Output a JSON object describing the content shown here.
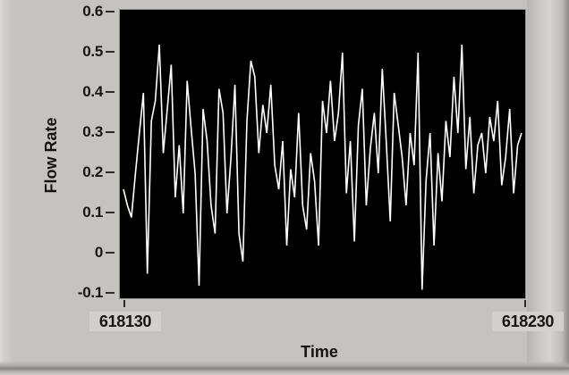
{
  "window": {
    "background": "#c5c3c0",
    "plot_background": "#000000",
    "trace_color": "#ffffff",
    "text_color": "#161616"
  },
  "chart_data": {
    "type": "line",
    "title": "",
    "xlabel": "Time",
    "ylabel": "Flow Rate",
    "xlim": [
      618130,
      618230
    ],
    "ylim": [
      -0.1,
      0.6
    ],
    "x_ticks": [
      "618130",
      "618230"
    ],
    "y_ticks": [
      "0.6",
      "0.5",
      "0.4",
      "0.3",
      "0.2",
      "0.1",
      "0",
      "-0.1"
    ],
    "y_tick_values": [
      0.6,
      0.5,
      0.4,
      0.3,
      0.2,
      0.1,
      0,
      -0.1
    ],
    "grid": false,
    "legend": "none",
    "plot_bg": "#000000",
    "line_color": "#ffffff",
    "x_start": 618130,
    "x_step": 1,
    "series": [
      {
        "name": "Flow Rate",
        "values": [
          0.16,
          0.12,
          0.09,
          0.2,
          0.3,
          0.4,
          -0.05,
          0.33,
          0.38,
          0.52,
          0.25,
          0.36,
          0.47,
          0.14,
          0.27,
          0.1,
          0.43,
          0.31,
          0.2,
          -0.08,
          0.36,
          0.28,
          0.12,
          0.05,
          0.41,
          0.35,
          0.1,
          0.24,
          0.42,
          0.05,
          -0.02,
          0.33,
          0.48,
          0.44,
          0.25,
          0.37,
          0.3,
          0.42,
          0.22,
          0.16,
          0.28,
          0.02,
          0.21,
          0.14,
          0.35,
          0.12,
          0.06,
          0.25,
          0.18,
          0.02,
          0.38,
          0.3,
          0.43,
          0.28,
          0.35,
          0.5,
          0.15,
          0.28,
          0.03,
          0.32,
          0.41,
          0.12,
          0.26,
          0.35,
          0.2,
          0.46,
          0.28,
          0.08,
          0.4,
          0.32,
          0.24,
          0.12,
          0.3,
          0.22,
          0.5,
          -0.09,
          0.18,
          0.3,
          0.02,
          0.25,
          0.13,
          0.33,
          0.24,
          0.44,
          0.3,
          0.52,
          0.21,
          0.34,
          0.15,
          0.27,
          0.3,
          0.2,
          0.34,
          0.28,
          0.38,
          0.17,
          0.24,
          0.36,
          0.15,
          0.27,
          0.3
        ]
      }
    ]
  }
}
